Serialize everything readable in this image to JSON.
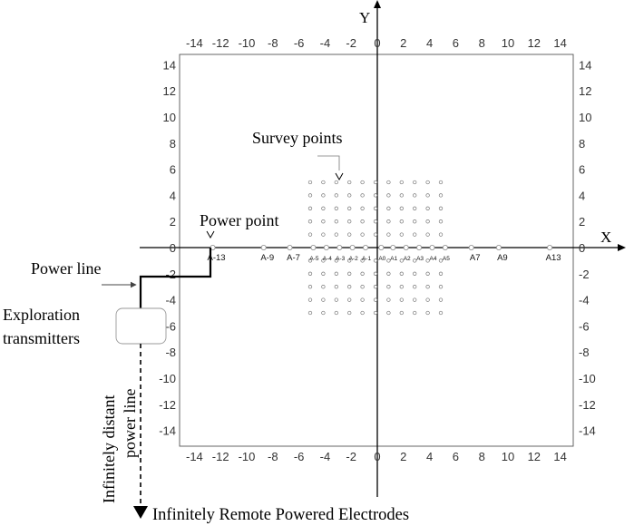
{
  "axes": {
    "x_label": "X",
    "y_label": "Y",
    "x_ticks": [
      -14,
      -12,
      -10,
      -8,
      -6,
      -4,
      -2,
      0,
      2,
      4,
      6,
      8,
      10,
      12,
      14
    ],
    "y_ticks": [
      14,
      12,
      10,
      8,
      6,
      4,
      2,
      0,
      -2,
      -4,
      -6,
      -8,
      -10,
      -12,
      -14
    ],
    "range": [
      -15,
      15
    ]
  },
  "labels": {
    "survey_points": "Survey points",
    "power_point": "Power point",
    "power_line": "Power line",
    "exploration_line1": "Exploration",
    "exploration_line2": "transmitters",
    "infinite_line1": "Infinitely distant",
    "infinite_line2": "power line",
    "remote_electrodes": "Infinitely Remote Powered Electrodes"
  },
  "survey_grid": {
    "x_values": [
      -5,
      -4,
      -3,
      -2,
      -1,
      0,
      1,
      2,
      3,
      4,
      5
    ],
    "y_values": [
      -5,
      -4,
      -3,
      -2,
      -1,
      0,
      1,
      2,
      3,
      4,
      5
    ]
  },
  "electrodes": [
    {
      "label": "A-13",
      "x": -12.6
    },
    {
      "label": "A-9",
      "x": -8.7
    },
    {
      "label": "A-7",
      "x": -6.7
    },
    {
      "label": "A-5",
      "x": -4.9
    },
    {
      "label": "A-4",
      "x": -3.9
    },
    {
      "label": "A-3",
      "x": -2.9
    },
    {
      "label": "A-2",
      "x": -1.9
    },
    {
      "label": "A-1",
      "x": -0.9
    },
    {
      "label": "A0",
      "x": 0.3
    },
    {
      "label": "A1",
      "x": 1.2
    },
    {
      "label": "A2",
      "x": 2.2
    },
    {
      "label": "A3",
      "x": 3.2
    },
    {
      "label": "A4",
      "x": 4.2
    },
    {
      "label": "A5",
      "x": 5.2
    },
    {
      "label": "A7",
      "x": 7.2
    },
    {
      "label": "A9",
      "x": 9.3
    },
    {
      "label": "A13",
      "x": 13.2
    }
  ]
}
